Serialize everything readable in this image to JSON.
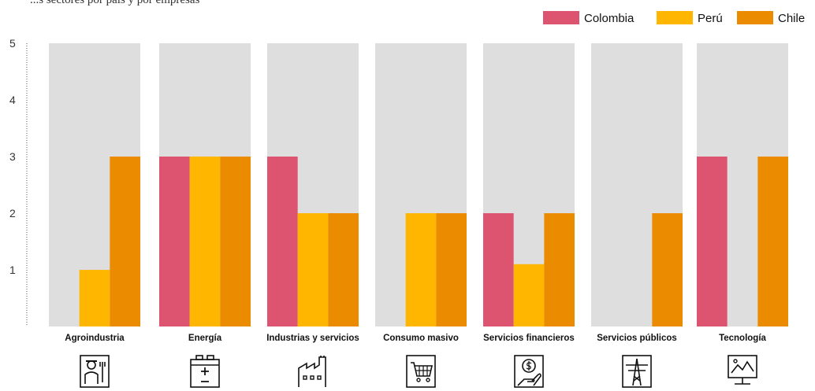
{
  "partial_title": "...s sectores por país y por empresas",
  "chart_data": {
    "type": "bar",
    "categories": [
      "Agroindustria",
      "Energía",
      "Industrias y servicios",
      "Consumo masivo",
      "Servicios financieros",
      "Servicios públicos",
      "Tecnología"
    ],
    "category_icons": [
      "farmer-icon",
      "battery-icon",
      "factory-icon",
      "shopping-cart-icon",
      "money-hand-icon",
      "power-tower-icon",
      "monitor-chart-icon"
    ],
    "series": [
      {
        "name": "Colombia",
        "color": "#dc5470",
        "values": [
          0,
          3,
          3,
          0,
          2,
          0,
          3
        ]
      },
      {
        "name": "Perú",
        "color": "#ffb600",
        "values": [
          1,
          3,
          2,
          2,
          1.1,
          0,
          0
        ]
      },
      {
        "name": "Chile",
        "color": "#eb8c00",
        "values": [
          3,
          3,
          2,
          2,
          2,
          2,
          3
        ]
      }
    ],
    "background_color": "#dedede",
    "ylim": [
      0,
      5
    ],
    "yticks": [
      1,
      2,
      3,
      4,
      5
    ],
    "xlabel": "",
    "ylabel": "",
    "legend_position": "top-right"
  }
}
